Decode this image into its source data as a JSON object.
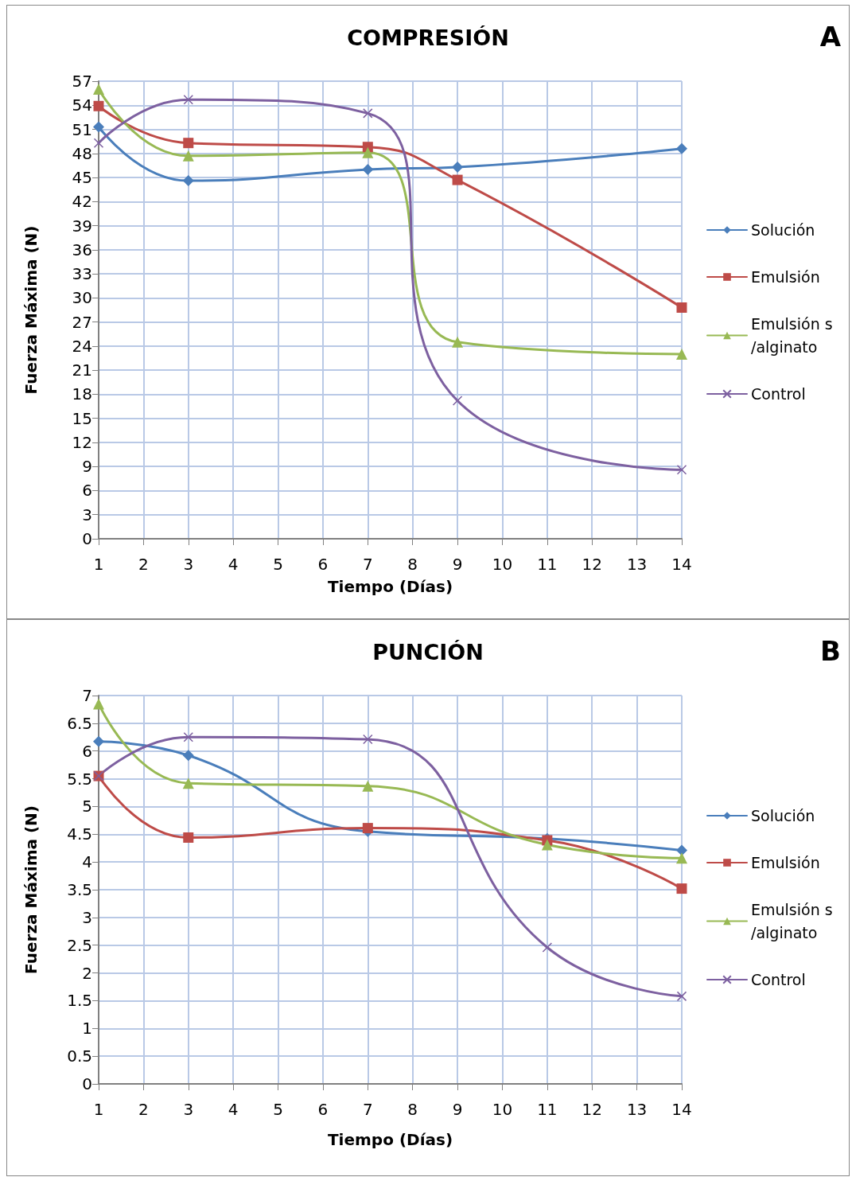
{
  "chart_data": [
    {
      "type": "line",
      "title": "COMPRESIÓN",
      "xlabel": "Tiempo (Días)",
      "ylabel": "Fuerza Máxima (N)",
      "annotations": [
        "A"
      ],
      "xlim": [
        1,
        14
      ],
      "xticks": [
        1,
        2,
        3,
        4,
        5,
        6,
        7,
        8,
        9,
        10,
        11,
        12,
        13,
        14
      ],
      "ylim": [
        0,
        57
      ],
      "yticks": [
        0,
        3,
        6,
        9,
        12,
        15,
        18,
        21,
        24,
        27,
        30,
        33,
        36,
        39,
        42,
        45,
        48,
        51,
        54,
        57
      ],
      "grid": true,
      "legend": "right",
      "line_style": "solid",
      "series": [
        {
          "name": "Solución",
          "color": "#4a7ebb",
          "marker": "diamond",
          "x": [
            1,
            3,
            7,
            9,
            14
          ],
          "values": [
            51.3,
            44.6,
            46.0,
            46.3,
            48.6
          ]
        },
        {
          "name": "Emulsión",
          "color": "#be4b48",
          "marker": "square",
          "x": [
            1,
            3,
            7,
            9,
            14
          ],
          "values": [
            53.9,
            49.3,
            48.8,
            44.7,
            28.8
          ]
        },
        {
          "name": "Emulsión s/alginato",
          "color": "#98b954",
          "marker": "triangle",
          "x": [
            1,
            3,
            7,
            9,
            14
          ],
          "values": [
            56.0,
            47.7,
            48.1,
            24.5,
            23.0
          ]
        },
        {
          "name": "Control",
          "color": "#7d60a0",
          "marker": "cross",
          "x": [
            1,
            3,
            7,
            9,
            14
          ],
          "values": [
            49.3,
            54.7,
            53.0,
            17.2,
            8.6
          ]
        }
      ]
    },
    {
      "type": "line",
      "title": "PUNCIÓN",
      "xlabel": "Tiempo (Días)",
      "ylabel": "Fuerza Máxima (N)",
      "annotations": [
        "B"
      ],
      "xlim": [
        1,
        14
      ],
      "xticks": [
        1,
        2,
        3,
        4,
        5,
        6,
        7,
        8,
        9,
        10,
        11,
        12,
        13,
        14
      ],
      "ylim": [
        0,
        7
      ],
      "yticks": [
        0,
        0.5,
        1,
        1.5,
        2,
        2.5,
        3,
        3.5,
        4,
        4.5,
        5,
        5.5,
        6,
        6.5,
        7
      ],
      "grid": true,
      "legend": "right",
      "line_style": "solid",
      "series": [
        {
          "name": "Solución",
          "color": "#4a7ebb",
          "marker": "diamond",
          "x": [
            1,
            3,
            7,
            11,
            14
          ],
          "values": [
            6.17,
            5.92,
            4.55,
            4.42,
            4.21
          ]
        },
        {
          "name": "Emulsión",
          "color": "#be4b48",
          "marker": "square",
          "x": [
            1,
            3,
            7,
            11,
            14
          ],
          "values": [
            5.55,
            4.44,
            4.61,
            4.39,
            3.52
          ]
        },
        {
          "name": "Emulsión s/alginato",
          "color": "#98b954",
          "marker": "triangle",
          "x": [
            1,
            3,
            7,
            11,
            14
          ],
          "values": [
            6.85,
            5.42,
            5.37,
            4.31,
            4.07
          ]
        },
        {
          "name": "Control",
          "color": "#7d60a0",
          "marker": "cross",
          "x": [
            1,
            3,
            7,
            11,
            14
          ],
          "values": [
            5.55,
            6.25,
            6.21,
            2.46,
            1.58
          ]
        }
      ]
    }
  ]
}
